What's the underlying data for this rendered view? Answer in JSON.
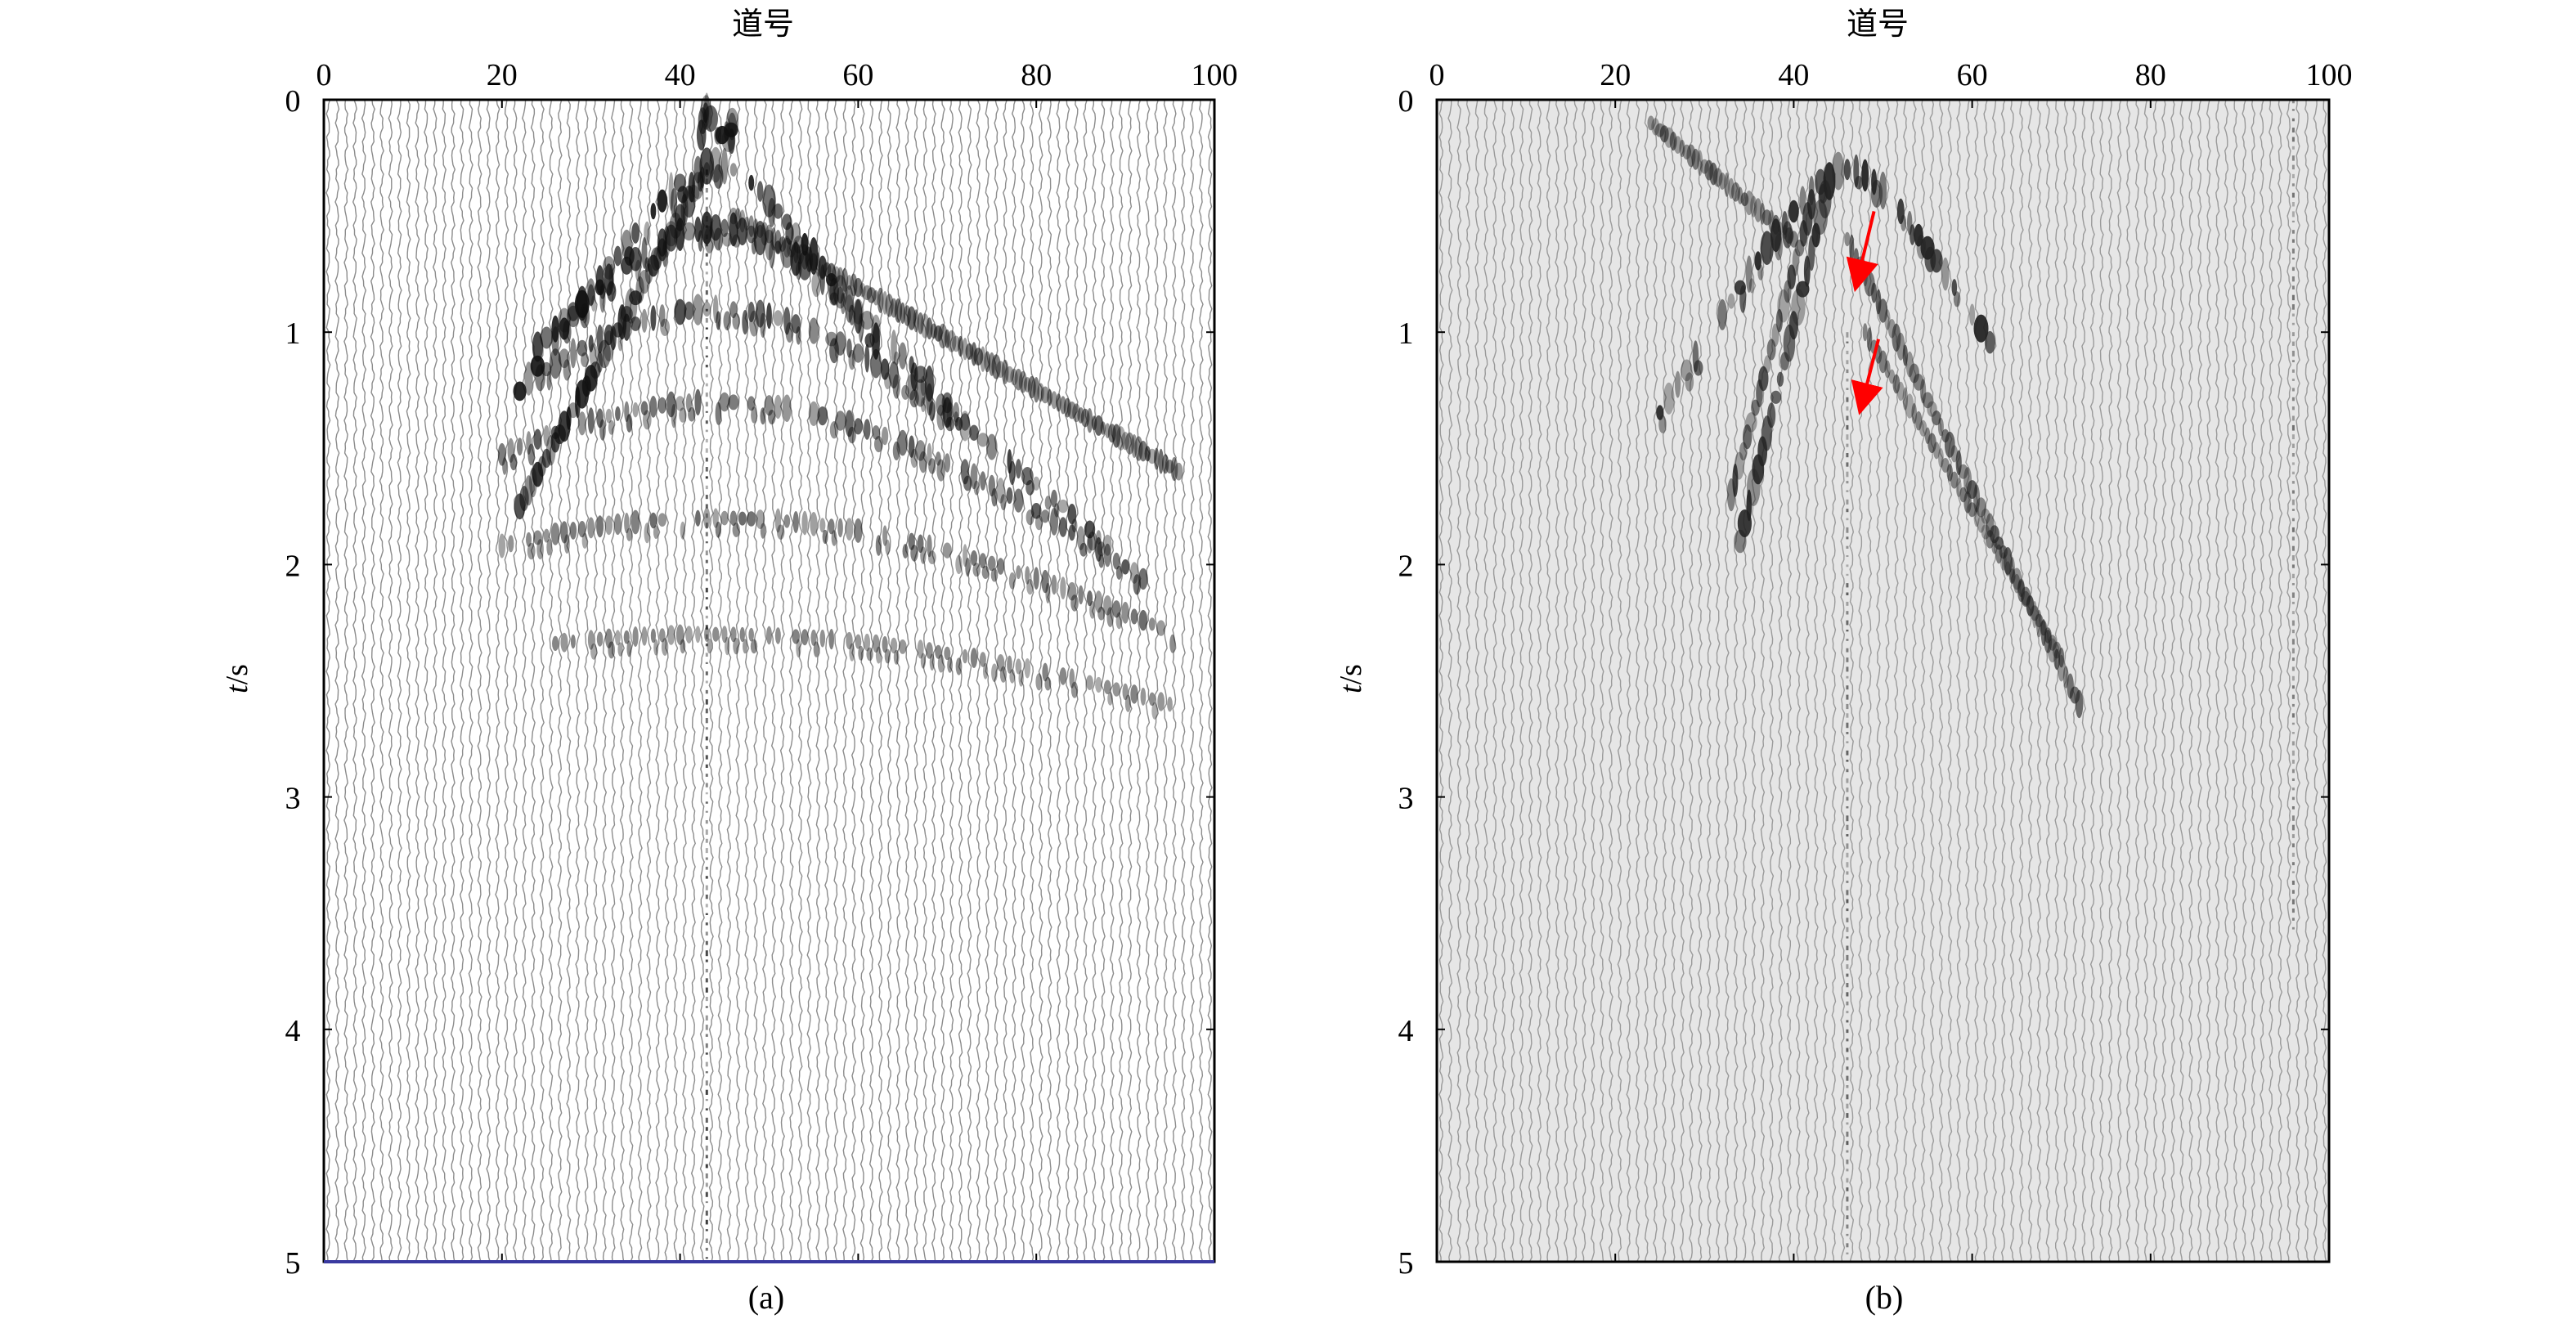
{
  "chart_data": [
    {
      "type": "heatmap",
      "panel_label": "(a)",
      "xlabel": "道号",
      "ylabel_italic": "t",
      "ylabel_unit": "/s",
      "xlim": [
        0,
        100
      ],
      "ylim": [
        0,
        5
      ],
      "x_ticks": [
        0,
        20,
        40,
        60,
        80,
        100
      ],
      "y_ticks": [
        0,
        1,
        2,
        3,
        4,
        5
      ],
      "background": "#ffffff",
      "trace_color": "#8c8c8c",
      "event_color": "#111111",
      "bottom_axis_color": "#3a3aa0",
      "events": [
        {
          "kind": "apex",
          "trace": 44,
          "time": 0.03,
          "strength": 1.0
        },
        {
          "kind": "hyperbola",
          "apex_trace": 44,
          "apex_time": 0.28,
          "velocity": 18,
          "trace_range": [
            22,
            62
          ],
          "strength": 1.0
        },
        {
          "kind": "hyperbola",
          "apex_trace": 44,
          "apex_time": 0.55,
          "velocity": 22,
          "trace_range": [
            24,
            72
          ],
          "strength": 0.9
        },
        {
          "kind": "hyperbola",
          "apex_trace": 44,
          "apex_time": 0.9,
          "velocity": 26,
          "trace_range": [
            25,
            88
          ],
          "strength": 0.75
        },
        {
          "kind": "hyperbola",
          "apex_trace": 44,
          "apex_time": 1.3,
          "velocity": 30,
          "trace_range": [
            20,
            92
          ],
          "strength": 0.6
        },
        {
          "kind": "hyperbola",
          "apex_trace": 44,
          "apex_time": 1.8,
          "velocity": 36,
          "trace_range": [
            20,
            95
          ],
          "strength": 0.45
        },
        {
          "kind": "hyperbola",
          "apex_trace": 44,
          "apex_time": 2.3,
          "velocity": 42,
          "trace_range": [
            25,
            95
          ],
          "strength": 0.3
        },
        {
          "kind": "line",
          "trace_start": 43,
          "time_start": 0.3,
          "trace_end": 22,
          "time_end": 1.75,
          "strength": 0.9
        },
        {
          "kind": "line",
          "trace_start": 46,
          "time_start": 0.5,
          "trace_end": 96,
          "time_end": 1.6,
          "strength": 0.5
        },
        {
          "kind": "vertical",
          "trace": 43,
          "time_start": 0.3,
          "time_end": 5.0,
          "strength": 0.9
        }
      ]
    },
    {
      "type": "heatmap",
      "panel_label": "(b)",
      "xlabel": "道号",
      "ylabel_italic": "t",
      "ylabel_unit": "/s",
      "xlim": [
        0,
        100
      ],
      "ylim": [
        0,
        5
      ],
      "x_ticks": [
        0,
        20,
        40,
        60,
        80,
        100
      ],
      "y_ticks": [
        0,
        1,
        2,
        3,
        4,
        5
      ],
      "background": "#e6e6e6",
      "trace_color": "#9a9a9a",
      "event_color": "#222222",
      "arrow_color": "#ff0000",
      "events": [
        {
          "kind": "hyperbola",
          "apex_trace": 46,
          "apex_time": 0.3,
          "velocity": 16,
          "trace_range": [
            25,
            62
          ],
          "strength": 1.0
        },
        {
          "kind": "line",
          "trace_start": 44,
          "time_start": 0.35,
          "trace_end": 34,
          "time_end": 1.9,
          "strength": 1.0
        },
        {
          "kind": "line",
          "trace_start": 42,
          "time_start": 0.45,
          "trace_end": 33,
          "time_end": 1.7,
          "strength": 0.8
        },
        {
          "kind": "line",
          "trace_start": 46,
          "time_start": 0.6,
          "trace_end": 72,
          "time_end": 2.6,
          "strength": 0.6
        },
        {
          "kind": "line",
          "trace_start": 48,
          "time_start": 1.0,
          "trace_end": 70,
          "time_end": 2.4,
          "strength": 0.45
        },
        {
          "kind": "line",
          "trace_start": 24,
          "time_start": 0.1,
          "trace_end": 40,
          "time_end": 0.6,
          "strength": 0.5
        },
        {
          "kind": "vertical",
          "trace": 46,
          "time_start": 1.0,
          "time_end": 5.0,
          "strength": 0.7
        },
        {
          "kind": "vertical",
          "trace": 96,
          "time_start": 0.0,
          "time_end": 3.6,
          "strength": 0.5
        }
      ],
      "arrows": [
        {
          "from_trace": 49,
          "from_time": 0.48,
          "to_trace": 47,
          "to_time": 0.8
        },
        {
          "from_trace": 49.5,
          "from_time": 1.03,
          "to_trace": 47.5,
          "to_time": 1.33
        }
      ]
    }
  ]
}
